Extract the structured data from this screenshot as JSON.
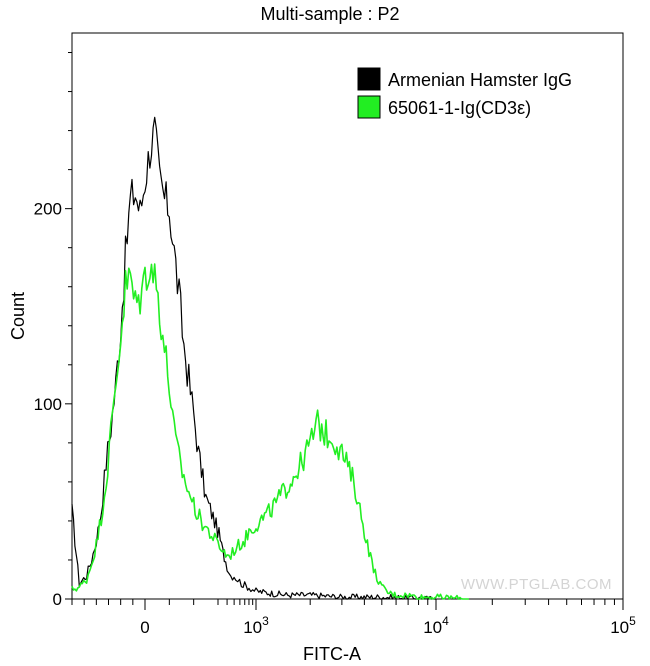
{
  "chart_data": {
    "type": "line",
    "title": "Multi-sample : P2",
    "xlabel": "FITC-A",
    "ylabel": "Count",
    "xscale": "biexponential",
    "xlim": [
      -300,
      100000
    ],
    "ylim": [
      0,
      290
    ],
    "grid": false,
    "legend_position": "top-right",
    "watermark": "WWW.PTGLAB.COM",
    "y_ticks": [
      {
        "value": 0,
        "label": "0"
      },
      {
        "value": 100,
        "label": "100"
      },
      {
        "value": 200,
        "label": "200"
      }
    ],
    "x_ticks": [
      {
        "value": 0,
        "base": "0",
        "exp": ""
      },
      {
        "value": 1000,
        "base": "10",
        "exp": "3"
      },
      {
        "value": 10000,
        "base": "10",
        "exp": "4"
      },
      {
        "value": 100000,
        "base": "10",
        "exp": "5"
      }
    ],
    "series": [
      {
        "name": "Armenian Hamster IgG",
        "color": "#000000",
        "x": [
          -300,
          -270,
          -240,
          -220,
          -200,
          -180,
          -160,
          -140,
          -120,
          -100,
          -80,
          -60,
          -40,
          -20,
          0,
          20,
          40,
          60,
          80,
          100,
          120,
          140,
          160,
          180,
          200,
          220,
          250,
          280,
          310,
          350,
          400,
          450,
          500,
          560,
          630,
          700,
          800,
          900,
          1000,
          1200,
          1500,
          2000,
          3000,
          5000,
          10000
        ],
        "y": [
          45,
          8,
          12,
          20,
          30,
          45,
          70,
          88,
          110,
          140,
          175,
          205,
          208,
          198,
          215,
          230,
          240,
          215,
          205,
          200,
          178,
          155,
          130,
          112,
          95,
          75,
          52,
          42,
          33,
          24,
          17,
          12,
          12,
          10,
          8,
          7,
          6,
          5,
          4,
          3,
          2,
          2,
          1,
          1,
          0
        ]
      },
      {
        "name": "65061-1-Ig(CD3ε)",
        "color": "#22ee22",
        "x": [
          -300,
          -270,
          -240,
          -220,
          -200,
          -180,
          -160,
          -140,
          -120,
          -100,
          -80,
          -60,
          -40,
          -20,
          0,
          20,
          40,
          60,
          80,
          100,
          120,
          140,
          160,
          180,
          200,
          230,
          260,
          300,
          350,
          400,
          450,
          500,
          600,
          700,
          800,
          1000,
          1200,
          1500,
          1800,
          2000,
          2200,
          2400,
          2700,
          3000,
          3500,
          4000,
          4500,
          5000,
          5500,
          6000,
          7000,
          8000,
          10000,
          15000
        ],
        "y": [
          5,
          6,
          10,
          18,
          28,
          42,
          60,
          85,
          110,
          135,
          160,
          165,
          150,
          155,
          165,
          172,
          165,
          150,
          128,
          110,
          85,
          72,
          62,
          55,
          48,
          40,
          35,
          28,
          25,
          22,
          23,
          25,
          28,
          30,
          35,
          38,
          45,
          58,
          70,
          80,
          90,
          85,
          82,
          75,
          60,
          35,
          15,
          6,
          3,
          2,
          2,
          1,
          1,
          0
        ]
      }
    ]
  }
}
